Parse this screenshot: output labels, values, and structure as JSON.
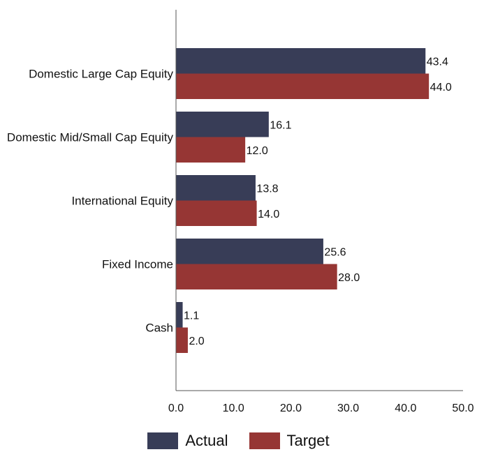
{
  "chart_data": {
    "type": "bar",
    "orientation": "horizontal",
    "categories": [
      "Domestic Large Cap Equity",
      "Domestic Mid/Small Cap Equity",
      "International Equity",
      "Fixed Income",
      "Cash"
    ],
    "series": [
      {
        "name": "Actual",
        "values": [
          43.4,
          16.1,
          13.8,
          25.6,
          1.1
        ],
        "color": "#383d57"
      },
      {
        "name": "Target",
        "values": [
          44.0,
          12.0,
          14.0,
          28.0,
          2.0
        ],
        "color": "#963634"
      }
    ],
    "xlim": [
      0,
      50
    ],
    "xticks": [
      "0.0",
      "10.0",
      "20.0",
      "30.0",
      "40.0",
      "50.0"
    ],
    "grid": false,
    "legend_position": "bottom"
  }
}
